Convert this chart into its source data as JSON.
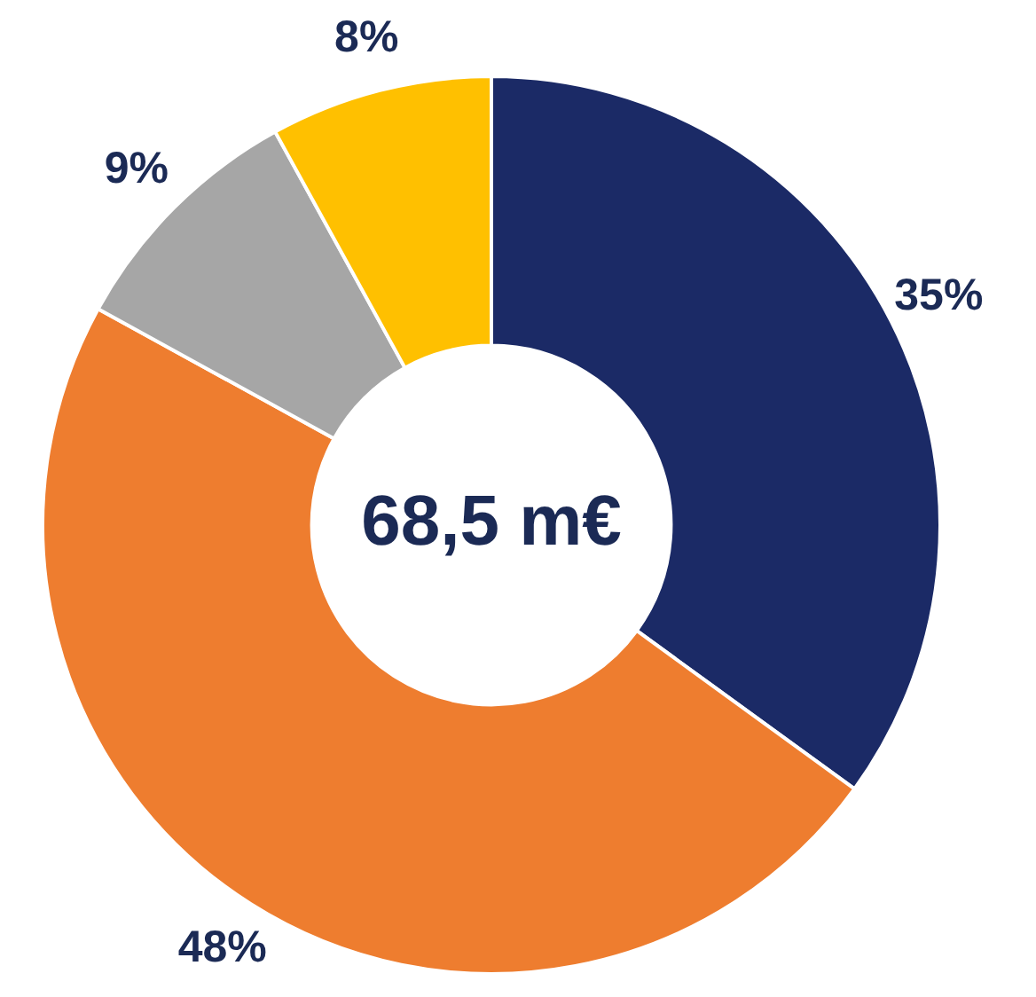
{
  "chart_data": {
    "type": "donut",
    "categories": [
      null,
      null,
      null,
      null
    ],
    "values": [
      35,
      48,
      9,
      8
    ],
    "colors": [
      "#1b2a66",
      "#ee7d2f",
      "#a6a6a6",
      "#ffc000"
    ],
    "value_labels": [
      "35%",
      "48%",
      "9%",
      "8%"
    ],
    "annotations": [
      "68,5 m€"
    ]
  }
}
